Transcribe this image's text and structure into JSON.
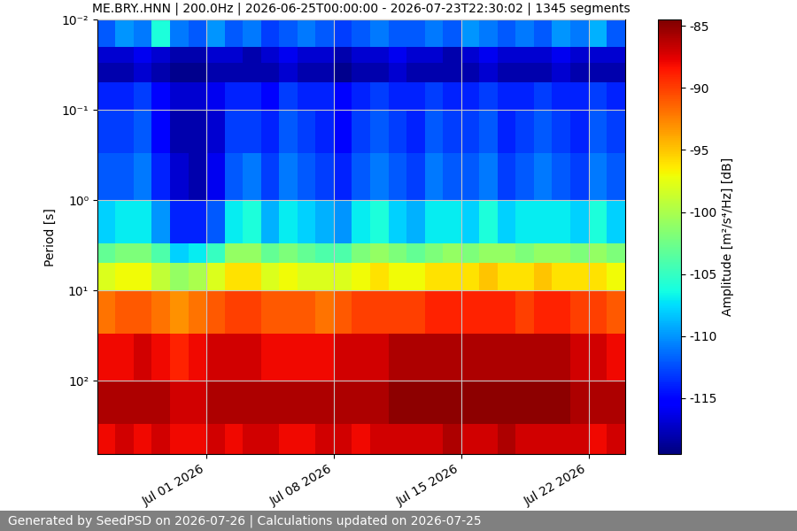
{
  "chart_data": {
    "type": "heatmap",
    "title": "ME.BRY..HNN | 200.0Hz | 2026-06-25T00:00:00 - 2026-07-23T22:30:02 | 1345 segments",
    "footer": "Generated by SeedPSD on 2026-07-26 | Calculations updated on 2026-07-25",
    "y_label": "Period [s]",
    "colorbar_label": "Amplitude [m²/s⁴/Hz] [dB]",
    "color": "jet",
    "log": "y",
    "grid": true,
    "x_edges": [
      "2026-06-25",
      "2026-06-26",
      "2026-06-27",
      "2026-06-28",
      "2026-06-29",
      "2026-06-30",
      "2026-07-01",
      "2026-07-02",
      "2026-07-03",
      "2026-07-04",
      "2026-07-05",
      "2026-07-06",
      "2026-07-07",
      "2026-07-08",
      "2026-07-09",
      "2026-07-10",
      "2026-07-11",
      "2026-07-12",
      "2026-07-13",
      "2026-07-14",
      "2026-07-15",
      "2026-07-16",
      "2026-07-17",
      "2026-07-18",
      "2026-07-19",
      "2026-07-20",
      "2026-07-21",
      "2026-07-22",
      "2026-07-23",
      "2026-07-24"
    ],
    "y_edges": [
      0.01,
      0.02,
      0.03,
      0.05,
      0.1,
      0.3,
      1,
      3,
      5,
      10,
      30,
      100,
      300,
      650
    ],
    "cells": [
      [
        -112,
        -110,
        -111,
        -106,
        -111,
        -112,
        -110,
        -112,
        -111,
        -113,
        -112,
        -111,
        -112,
        -113,
        -112,
        -111,
        -112,
        -112,
        -111,
        -112,
        -110,
        -111,
        -112,
        -111,
        -112,
        -110,
        -111,
        -109,
        -112
      ],
      [
        -117,
        -117,
        -116,
        -117,
        -118,
        -118,
        -117,
        -117,
        -118,
        -117,
        -116,
        -117,
        -117,
        -118,
        -117,
        -117,
        -116,
        -117,
        -117,
        -118,
        -117,
        -116,
        -117,
        -117,
        -117,
        -116,
        -117,
        -117,
        -117
      ],
      [
        -118,
        -118,
        -117,
        -118,
        -119,
        -119,
        -118,
        -118,
        -118,
        -118,
        -117,
        -118,
        -118,
        -119,
        -118,
        -118,
        -117,
        -118,
        -118,
        -118,
        -118,
        -117,
        -118,
        -118,
        -118,
        -117,
        -118,
        -118,
        -118
      ],
      [
        -114,
        -114,
        -113,
        -115,
        -117,
        -117,
        -116,
        -114,
        -114,
        -115,
        -113,
        -114,
        -114,
        -115,
        -114,
        -113,
        -114,
        -114,
        -113,
        -114,
        -114,
        -113,
        -114,
        -114,
        -113,
        -114,
        -114,
        -113,
        -114
      ],
      [
        -113,
        -113,
        -112,
        -115,
        -118,
        -118,
        -117,
        -113,
        -113,
        -114,
        -112,
        -113,
        -114,
        -115,
        -113,
        -112,
        -113,
        -114,
        -112,
        -113,
        -113,
        -112,
        -114,
        -113,
        -112,
        -113,
        -114,
        -112,
        -113
      ],
      [
        -112,
        -112,
        -111,
        -114,
        -117,
        -118,
        -116,
        -112,
        -111,
        -113,
        -111,
        -112,
        -113,
        -114,
        -112,
        -111,
        -112,
        -113,
        -111,
        -112,
        -112,
        -111,
        -113,
        -112,
        -111,
        -112,
        -113,
        -111,
        -112
      ],
      [
        -108,
        -107,
        -107,
        -110,
        -114,
        -114,
        -112,
        -107,
        -106,
        -109,
        -107,
        -108,
        -109,
        -110,
        -107,
        -106,
        -108,
        -109,
        -107,
        -107,
        -108,
        -106,
        -108,
        -107,
        -107,
        -107,
        -108,
        -106,
        -108
      ],
      [
        -103,
        -102,
        -102,
        -104,
        -108,
        -107,
        -105,
        -101,
        -101,
        -103,
        -102,
        -103,
        -104,
        -104,
        -102,
        -101,
        -102,
        -103,
        -102,
        -101,
        -102,
        -101,
        -101,
        -102,
        -101,
        -101,
        -102,
        -101,
        -102
      ],
      [
        -98,
        -97,
        -97,
        -99,
        -101,
        -100,
        -98,
        -96,
        -96,
        -98,
        -97,
        -98,
        -98,
        -98,
        -97,
        -96,
        -97,
        -97,
        -96,
        -96,
        -96,
        -95,
        -96,
        -96,
        -95,
        -96,
        -96,
        -96,
        -97
      ],
      [
        -92,
        -91,
        -91,
        -92,
        -93,
        -92,
        -91,
        -90,
        -90,
        -91,
        -91,
        -91,
        -92,
        -91,
        -90,
        -90,
        -90,
        -90,
        -89,
        -89,
        -89,
        -89,
        -89,
        -90,
        -89,
        -89,
        -90,
        -90,
        -91
      ],
      [
        -88,
        -88,
        -87,
        -88,
        -89,
        -88,
        -87,
        -87,
        -87,
        -88,
        -88,
        -88,
        -88,
        -87,
        -87,
        -87,
        -86,
        -86,
        -86,
        -86,
        -86,
        -86,
        -86,
        -86,
        -86,
        -86,
        -87,
        -87,
        -88
      ],
      [
        -86,
        -86,
        -86,
        -86,
        -87,
        -87,
        -86,
        -86,
        -86,
        -86,
        -86,
        -86,
        -86,
        -86,
        -86,
        -86,
        -85,
        -85,
        -85,
        -85,
        -85,
        -85,
        -85,
        -85,
        -85,
        -85,
        -86,
        -86,
        -86
      ],
      [
        -88,
        -87,
        -88,
        -87,
        -88,
        -88,
        -87,
        -88,
        -87,
        -87,
        -88,
        -88,
        -87,
        -87,
        -88,
        -87,
        -87,
        -87,
        -87,
        -86,
        -87,
        -87,
        -86,
        -87,
        -87,
        -87,
        -87,
        -88,
        -87
      ]
    ],
    "xlim": [
      "2026-06-25T00:00:00",
      "2026-07-24T00:00:00"
    ],
    "xticks": [
      {
        "value": "2026-07-01",
        "label": "Jul 01 2026"
      },
      {
        "value": "2026-07-08",
        "label": "Jul 08 2026"
      },
      {
        "value": "2026-07-15",
        "label": "Jul 15 2026"
      },
      {
        "value": "2026-07-22",
        "label": "Jul 22 2026"
      }
    ],
    "ylim": [
      650,
      0.01
    ],
    "yticks": [
      {
        "value": 0.01,
        "label": "10⁻²"
      },
      {
        "value": 0.1,
        "label": "10⁻¹"
      },
      {
        "value": 1,
        "label": "10⁰"
      },
      {
        "value": 10,
        "label": "10¹"
      },
      {
        "value": 100,
        "label": "10²"
      }
    ],
    "colorbar_range": [
      -119.5,
      -84.5
    ],
    "colorbar_ticks": [
      -115,
      -110,
      -105,
      -100,
      -95,
      -90,
      -85
    ]
  }
}
